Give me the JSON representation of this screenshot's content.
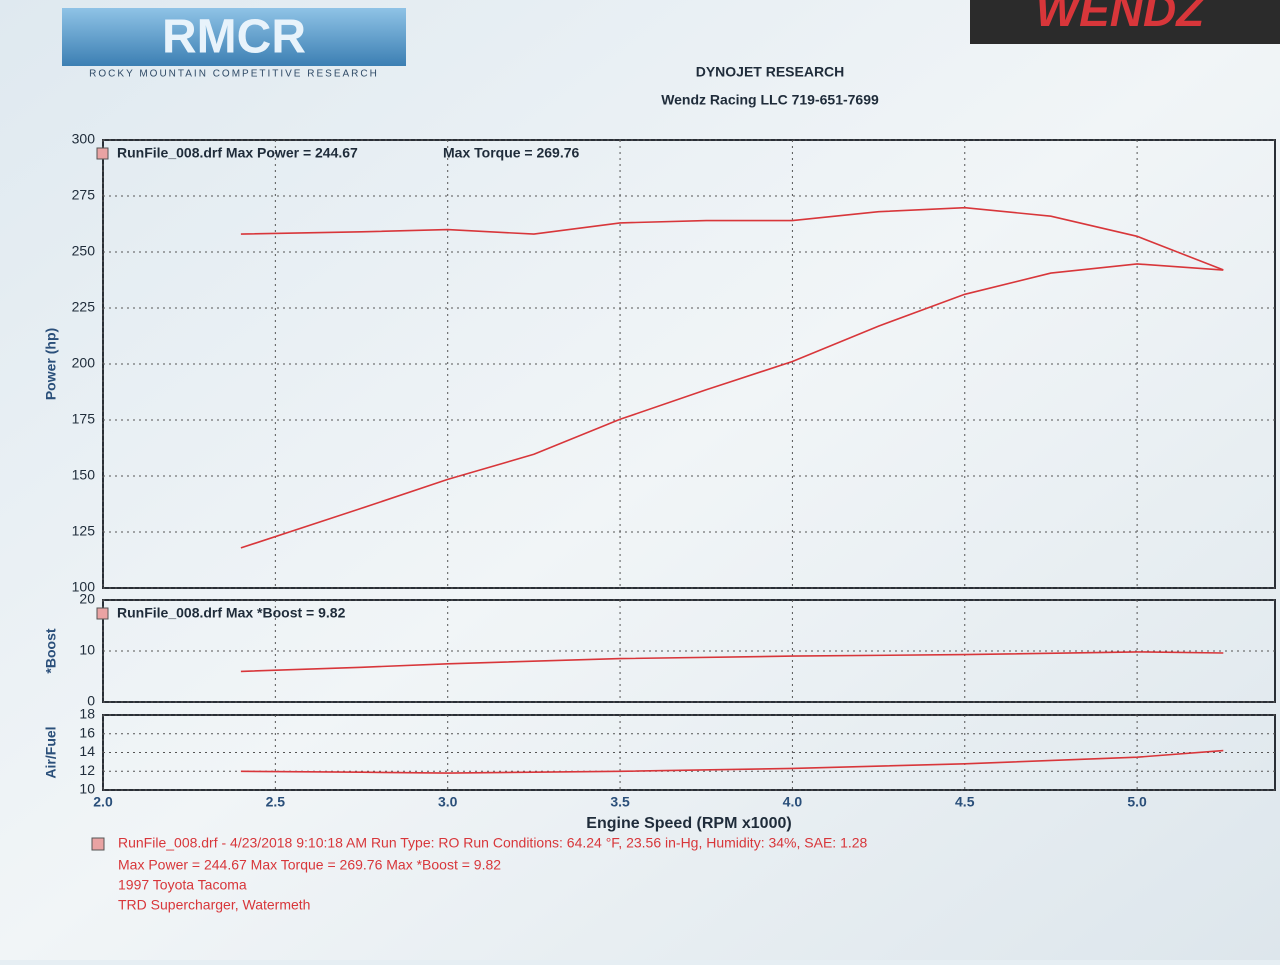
{
  "header": {
    "logo": "RMCR",
    "logo_subtitle": "ROCKY MOUNTAIN COMPETITIVE RESEARCH",
    "brand": "WENDZ",
    "title": "DYNOJET RESEARCH",
    "subtitle": "Wendz Racing LLC  719-651-7699"
  },
  "chart_data": [
    {
      "type": "line",
      "ylabel": "Power (hp)",
      "annotations": [
        "RunFile_008.drf Max Power = 244.67",
        "Max Torque = 269.76"
      ],
      "x": [
        2.4,
        2.75,
        3.0,
        3.25,
        3.5,
        3.75,
        4.0,
        4.25,
        4.5,
        4.75,
        5.0,
        5.25
      ],
      "series": [
        {
          "color": "#d8363a",
          "values": [
            117.9,
            135.6,
            148.5,
            159.7,
            175.3,
            188.5,
            201.1,
            216.9,
            231.1,
            240.6,
            244.67,
            241.9
          ]
        },
        {
          "color": "#d8363a",
          "values": [
            258,
            259,
            260,
            258,
            263,
            264,
            264,
            268,
            269.76,
            266,
            257,
            242
          ]
        }
      ],
      "ylim": [
        100,
        300
      ],
      "yticks": [
        100,
        125,
        150,
        175,
        200,
        225,
        250,
        275,
        300
      ],
      "grid": true
    },
    {
      "type": "line",
      "ylabel": "*Boost",
      "annotations": [
        "RunFile_008.drf Max *Boost = 9.82"
      ],
      "x": [
        2.4,
        2.75,
        3.0,
        3.5,
        4.0,
        4.5,
        5.0,
        5.25
      ],
      "series": [
        {
          "color": "#d8363a",
          "values": [
            6.0,
            6.8,
            7.5,
            8.5,
            9.0,
            9.3,
            9.82,
            9.6
          ]
        }
      ],
      "ylim": [
        0,
        20
      ],
      "yticks": [
        0,
        10,
        20
      ],
      "grid": true
    },
    {
      "type": "line",
      "ylabel": "Air/Fuel",
      "xlabel": "Engine Speed (RPM x1000)",
      "x": [
        2.4,
        2.75,
        3.0,
        3.5,
        4.0,
        4.5,
        5.0,
        5.25
      ],
      "series": [
        {
          "color": "#d8363a",
          "values": [
            12.0,
            11.9,
            11.8,
            12.0,
            12.3,
            12.8,
            13.5,
            14.2
          ]
        }
      ],
      "xlim": [
        2.0,
        5.4
      ],
      "xticks": [
        {
          "value": 2,
          "label": "2.0"
        },
        2.5,
        {
          "value": 3,
          "label": "3.0"
        },
        3.5,
        {
          "value": 4,
          "label": "4.0"
        },
        4.5,
        {
          "value": 5,
          "label": "5.0"
        }
      ],
      "ylim": [
        10,
        18
      ],
      "yticks": [
        10,
        12,
        14,
        16,
        18
      ],
      "grid": true
    }
  ],
  "footer": {
    "lines": [
      "RunFile_008.drf - 4/23/2018 9:10:18 AM  Run Type: RO  Run Conditions: 64.24 °F, 23.56 in-Hg,  Humidity: 34%, SAE: 1.28",
      "Max Power = 244.67  Max Torque = 269.76  Max *Boost = 9.82",
      "1997 Toyota Tacoma",
      "TRD Supercharger, Watermeth"
    ]
  }
}
